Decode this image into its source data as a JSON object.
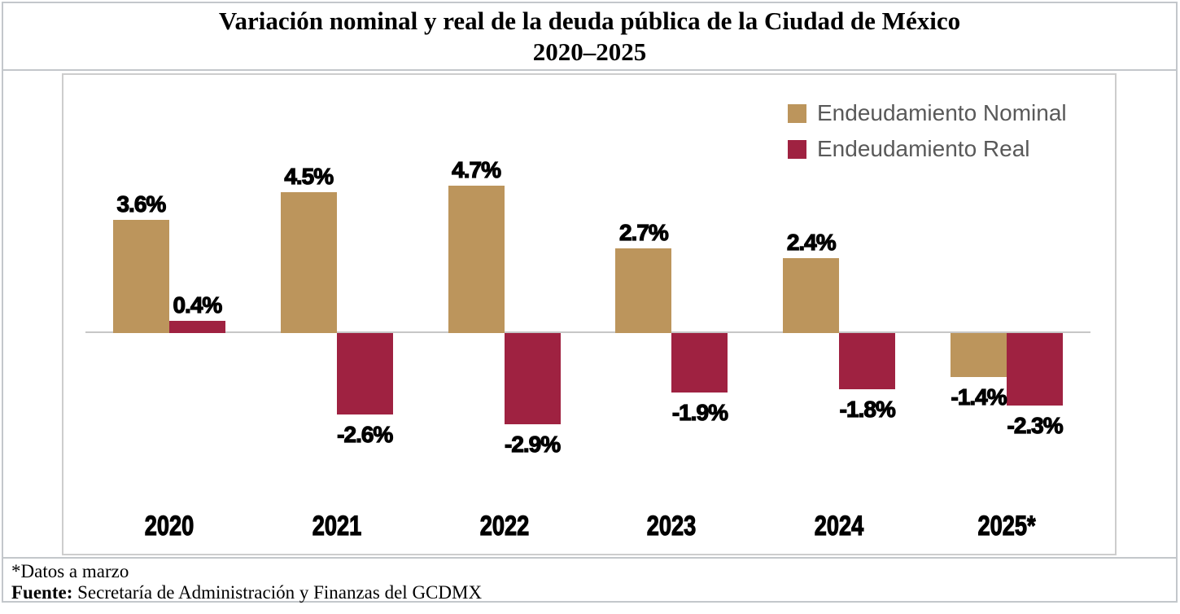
{
  "page": {
    "title_line1": "Variación nominal y real de la deuda pública de la Ciudad de México",
    "title_line2": "2020–2025"
  },
  "legend": {
    "items": [
      {
        "label": "Endeudamiento Nominal",
        "color": "#BC955C"
      },
      {
        "label": "Endeudamiento Real",
        "color": "#9F2241"
      }
    ]
  },
  "chart_data": {
    "type": "bar",
    "title": "Variación nominal y real de la deuda pública de la Ciudad de México 2020–2025",
    "categories": [
      "2020",
      "2021",
      "2022",
      "2023",
      "2024",
      "2025*"
    ],
    "series": [
      {
        "name": "Endeudamiento Nominal",
        "color": "#BC955C",
        "values": [
          3.6,
          4.5,
          4.7,
          2.7,
          2.4,
          -1.4
        ],
        "labels": [
          "3.6%",
          "4.5%",
          "4.7%",
          "2.7%",
          "2.4%",
          "-1.4%"
        ]
      },
      {
        "name": "Endeudamiento Real",
        "color": "#9F2241",
        "values": [
          0.4,
          -2.6,
          -2.9,
          -1.9,
          -1.8,
          -2.3
        ],
        "labels": [
          "0.4%",
          "-2.6%",
          "-2.9%",
          "-1.9%",
          "-1.8%",
          "-2.3%"
        ]
      }
    ],
    "xlabel": "",
    "ylabel": "",
    "ylim": [
      -3.5,
      5.5
    ],
    "baseline": 0,
    "grid": false,
    "data_labels": true,
    "legend_position": "top-right"
  },
  "footer": {
    "note": "*Datos a marzo",
    "source_label": "Fuente:",
    "source_text": "Secretaría de Administración y Finanzas del GCDMX"
  },
  "colors": {
    "nominal": "#BC955C",
    "real": "#9F2241",
    "outer_border": "#C3C7CB",
    "plot_border": "#CDCDCD",
    "axis_line": "#C7C7C7",
    "legend_text": "#595959",
    "data_label_text": "#000000"
  }
}
